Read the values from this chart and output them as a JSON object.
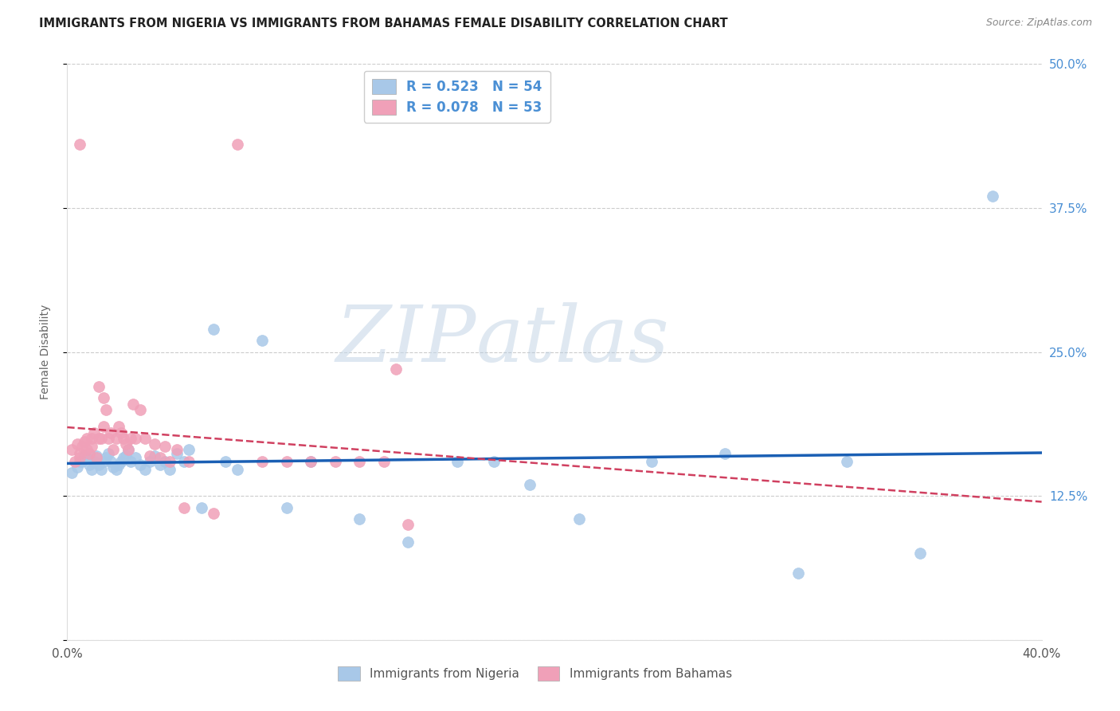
{
  "title": "IMMIGRANTS FROM NIGERIA VS IMMIGRANTS FROM BAHAMAS FEMALE DISABILITY CORRELATION CHART",
  "source": "Source: ZipAtlas.com",
  "ylabel": "Female Disability",
  "legend_label_blue": "Immigrants from Nigeria",
  "legend_label_pink": "Immigrants from Bahamas",
  "R_blue": 0.523,
  "N_blue": 54,
  "R_pink": 0.078,
  "N_pink": 53,
  "xlim": [
    0.0,
    0.4
  ],
  "ylim": [
    0.0,
    0.5
  ],
  "xticks": [
    0.0,
    0.1,
    0.2,
    0.3,
    0.4
  ],
  "xtick_labels": [
    "0.0%",
    "",
    "",
    "",
    "40.0%"
  ],
  "yticks": [
    0.0,
    0.125,
    0.25,
    0.375,
    0.5
  ],
  "ytick_labels_right": [
    "",
    "12.5%",
    "25.0%",
    "37.5%",
    "50.0%"
  ],
  "color_blue": "#a8c8e8",
  "color_pink": "#f0a0b8",
  "line_blue": "#1a5fb4",
  "line_pink": "#d04060",
  "watermark_zip": "ZIP",
  "watermark_atlas": "atlas",
  "blue_x": [
    0.002,
    0.004,
    0.005,
    0.006,
    0.007,
    0.008,
    0.009,
    0.01,
    0.011,
    0.012,
    0.013,
    0.014,
    0.015,
    0.016,
    0.017,
    0.018,
    0.019,
    0.02,
    0.021,
    0.022,
    0.023,
    0.024,
    0.025,
    0.026,
    0.028,
    0.03,
    0.032,
    0.034,
    0.036,
    0.038,
    0.04,
    0.042,
    0.045,
    0.048,
    0.05,
    0.055,
    0.06,
    0.065,
    0.07,
    0.08,
    0.09,
    0.1,
    0.12,
    0.14,
    0.16,
    0.175,
    0.19,
    0.21,
    0.24,
    0.27,
    0.3,
    0.32,
    0.35,
    0.38
  ],
  "blue_y": [
    0.145,
    0.15,
    0.155,
    0.155,
    0.16,
    0.158,
    0.152,
    0.148,
    0.155,
    0.16,
    0.152,
    0.148,
    0.155,
    0.158,
    0.162,
    0.155,
    0.15,
    0.148,
    0.152,
    0.155,
    0.158,
    0.16,
    0.165,
    0.155,
    0.158,
    0.152,
    0.148,
    0.155,
    0.16,
    0.152,
    0.155,
    0.148,
    0.162,
    0.155,
    0.165,
    0.115,
    0.27,
    0.155,
    0.148,
    0.26,
    0.115,
    0.155,
    0.105,
    0.085,
    0.155,
    0.155,
    0.135,
    0.105,
    0.155,
    0.162,
    0.058,
    0.155,
    0.075,
    0.385
  ],
  "pink_x": [
    0.002,
    0.003,
    0.004,
    0.005,
    0.005,
    0.006,
    0.007,
    0.008,
    0.008,
    0.009,
    0.01,
    0.01,
    0.011,
    0.012,
    0.013,
    0.013,
    0.014,
    0.015,
    0.015,
    0.016,
    0.017,
    0.018,
    0.019,
    0.02,
    0.021,
    0.022,
    0.023,
    0.024,
    0.025,
    0.026,
    0.027,
    0.028,
    0.03,
    0.032,
    0.034,
    0.036,
    0.038,
    0.04,
    0.042,
    0.045,
    0.048,
    0.05,
    0.06,
    0.07,
    0.08,
    0.09,
    0.1,
    0.11,
    0.12,
    0.13,
    0.135,
    0.14,
    0.005
  ],
  "pink_y": [
    0.165,
    0.155,
    0.17,
    0.158,
    0.162,
    0.168,
    0.172,
    0.165,
    0.175,
    0.162,
    0.168,
    0.175,
    0.18,
    0.158,
    0.175,
    0.22,
    0.175,
    0.185,
    0.21,
    0.2,
    0.175,
    0.18,
    0.165,
    0.175,
    0.185,
    0.18,
    0.175,
    0.17,
    0.165,
    0.175,
    0.205,
    0.175,
    0.2,
    0.175,
    0.16,
    0.17,
    0.158,
    0.168,
    0.155,
    0.165,
    0.115,
    0.155,
    0.11,
    0.43,
    0.155,
    0.155,
    0.155,
    0.155,
    0.155,
    0.155,
    0.235,
    0.1,
    0.43
  ]
}
